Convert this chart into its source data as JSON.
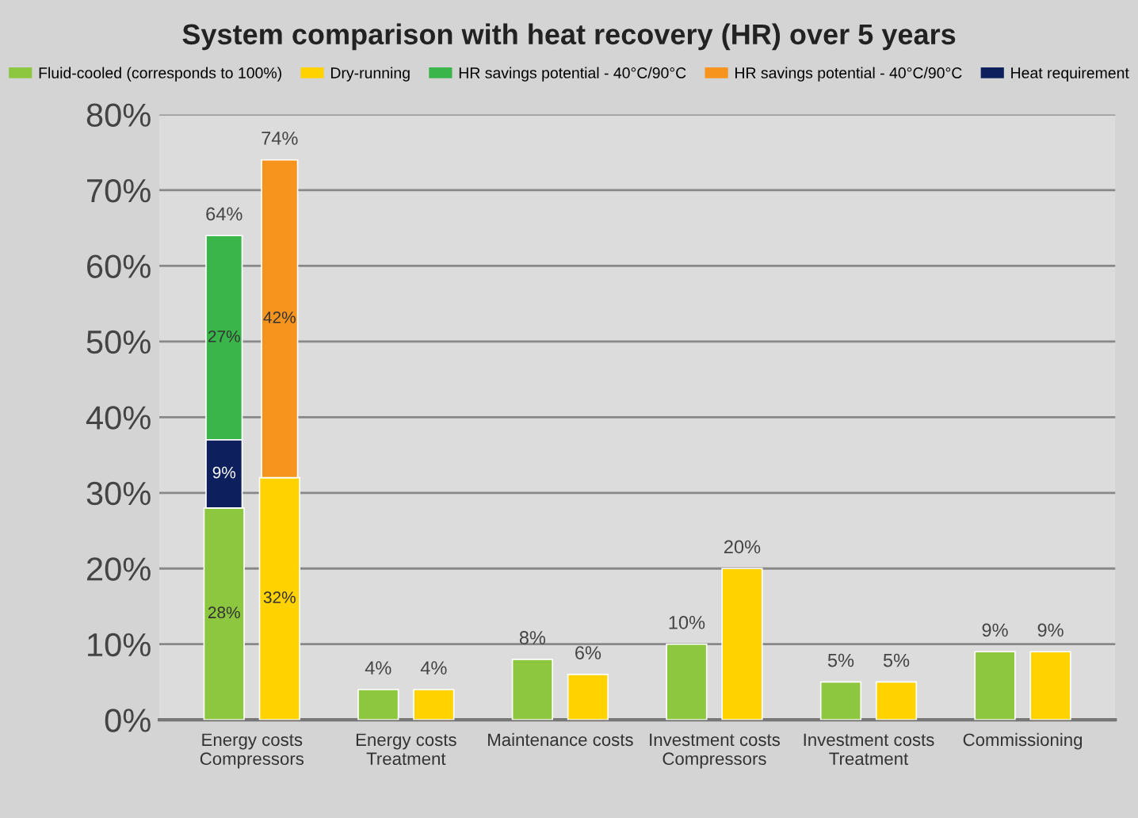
{
  "chart_data": {
    "type": "bar",
    "title": "System comparison with heat recovery (HR) over 5 years",
    "categories": [
      "Energy costs\nCompressors",
      "Energy costs\nTreatment",
      "Maintenance costs",
      "Investment costs\nCompressors",
      "Investment costs\nTreatment",
      "Commissioning"
    ],
    "series": [
      {
        "name": "Fluid-cooled (corresponds to 100%)",
        "color": "#8dc63f",
        "values": [
          28,
          4,
          8,
          10,
          5,
          9
        ],
        "value_labels": [
          "28%",
          "4%",
          "8%",
          "10%",
          "5%",
          "9%"
        ]
      },
      {
        "name": "Dry-running",
        "color": "#ffd200",
        "values": [
          32,
          4,
          6,
          20,
          5,
          9
        ],
        "value_labels": [
          "32%",
          "4%",
          "6%",
          "20%",
          "5%",
          "9%"
        ]
      },
      {
        "name": "HR savings potential - 40°C/90°C",
        "color": "#39b54a",
        "values": [
          27,
          null,
          null,
          null,
          null,
          null
        ],
        "base": [
          37,
          null,
          null,
          null,
          null,
          null
        ],
        "value_labels": [
          "27%",
          null,
          null,
          null,
          null,
          null
        ]
      },
      {
        "name": "HR savings potential - 40°C/90°C",
        "color": "#f7941d",
        "values": [
          42,
          null,
          null,
          null,
          null,
          null
        ],
        "base": [
          32,
          null,
          null,
          null,
          null,
          null
        ],
        "value_labels": [
          "42%",
          null,
          null,
          null,
          null,
          null
        ]
      },
      {
        "name": "Heat requirement",
        "color": "#0d1f5c",
        "values": [
          9,
          null,
          null,
          null,
          null,
          null
        ],
        "base": [
          28,
          null,
          null,
          null,
          null,
          null
        ],
        "value_labels": [
          "9%",
          null,
          null,
          null,
          null,
          null
        ]
      }
    ],
    "totals": [
      [
        "64%",
        "74%"
      ],
      null,
      null,
      null,
      null,
      null
    ],
    "ylim": [
      0,
      80
    ],
    "yticks": [
      {
        "value": 0,
        "label": "0%"
      },
      {
        "value": 10,
        "label": "10%"
      },
      {
        "value": 20,
        "label": "20%"
      },
      {
        "value": 30,
        "label": "30%"
      },
      {
        "value": 40,
        "label": "40%"
      },
      {
        "value": 50,
        "label": "50%"
      },
      {
        "value": 60,
        "label": "60%"
      },
      {
        "value": 70,
        "label": "70%"
      },
      {
        "value": 80,
        "label": "80%"
      }
    ],
    "grid": "y",
    "legend": "top"
  }
}
